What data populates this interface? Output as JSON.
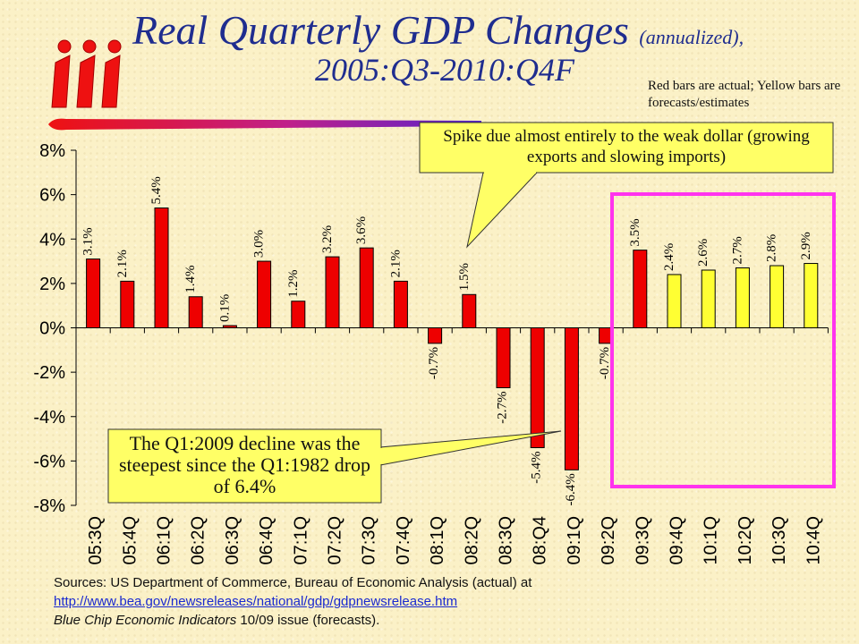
{
  "header": {
    "logo_text": "iii",
    "title": "Real Quarterly GDP Changes",
    "title_sub": "(annualized),",
    "title_line2": "2005:Q3-2010:Q4F",
    "note": "Red bars are actual; Yellow bars are forecasts/estimates"
  },
  "colors": {
    "actual": "#ee0000",
    "forecast": "#ffff33",
    "title": "#1f2d8f",
    "highlight_box": "#ff33ee",
    "callout_fill": "#ffff66"
  },
  "callouts": {
    "top": "Spike due almost entirely to the weak dollar (growing exports and slowing imports)",
    "bottom": "The Q1:2009 decline was the steepest since the Q1:1982 drop of 6.4%"
  },
  "sources": {
    "line1": "Sources: US Department of Commerce, Bureau of Economic Analysis (actual) at",
    "url": "http://www.bea.gov/newsreleases/national/gdp/gdpnewsrelease.htm",
    "line3_italic": "Blue Chip Economic Indicators",
    "line3_rest": " 10/09 issue (forecasts)."
  },
  "chart_data": {
    "type": "bar",
    "title": "Real Quarterly GDP Changes (annualized), 2005:Q3-2010:Q4F",
    "ylim": [
      -8,
      8
    ],
    "yticks": [
      8,
      6,
      4,
      2,
      0,
      -2,
      -4,
      -6,
      -8
    ],
    "ytick_labels": [
      "8%",
      "6%",
      "4%",
      "2%",
      "0%",
      "-2%",
      "-4%",
      "-6%",
      "-8%"
    ],
    "categories": [
      "05:3Q",
      "05:4Q",
      "06:1Q",
      "06:2Q",
      "06:3Q",
      "06:4Q",
      "07:1Q",
      "07:2Q",
      "07:3Q",
      "07:4Q",
      "08:1Q",
      "08:2Q",
      "08:3Q",
      "08:Q4",
      "09:1Q",
      "09:2Q",
      "09:3Q",
      "09:4Q",
      "10:1Q",
      "10:2Q",
      "10:3Q",
      "10:4Q"
    ],
    "values": [
      3.1,
      2.1,
      5.4,
      1.4,
      0.1,
      3.0,
      1.2,
      3.2,
      3.6,
      2.1,
      -0.7,
      1.5,
      -2.7,
      -5.4,
      -6.4,
      -0.7,
      3.5,
      2.4,
      2.6,
      2.7,
      2.8,
      2.9
    ],
    "data_labels": [
      "3.1%",
      "2.1%",
      "5.4%",
      "1.4%",
      "0.1%",
      "3.0%",
      "1.2%",
      "3.2%",
      "3.6%",
      "2.1%",
      "-0.7%",
      "1.5%",
      "-2.7%",
      "-5.4%",
      "-6.4%",
      "-0.7%",
      "3.5%",
      "2.4%",
      "2.6%",
      "2.7%",
      "2.8%",
      "2.9%"
    ],
    "bar_type": [
      "actual",
      "actual",
      "actual",
      "actual",
      "actual",
      "actual",
      "actual",
      "actual",
      "actual",
      "actual",
      "actual",
      "actual",
      "actual",
      "actual",
      "actual",
      "actual",
      "actual",
      "forecast",
      "forecast",
      "forecast",
      "forecast",
      "forecast"
    ],
    "legend": "none",
    "grid": false
  }
}
